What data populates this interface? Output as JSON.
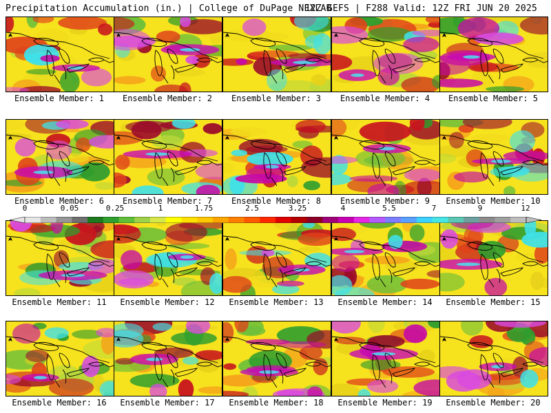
{
  "header": {
    "title": "Precipitation Accumulation (in.) | College of DuPage NEXLAB",
    "run_info": "12Z GEFS | F288 Valid: 12Z FRI JUN 20 2025"
  },
  "panels": [
    {
      "label": "Ensemble Member: 1"
    },
    {
      "label": "Ensemble Member: 2"
    },
    {
      "label": "Ensemble Member: 3"
    },
    {
      "label": "Ensemble Member: 4"
    },
    {
      "label": "Ensemble Member: 5"
    },
    {
      "label": "Ensemble Member: 6"
    },
    {
      "label": "Ensemble Member: 7"
    },
    {
      "label": "Ensemble Member: 8"
    },
    {
      "label": "Ensemble Member: 9"
    },
    {
      "label": "Ensemble Member: 10"
    },
    {
      "label": "Ensemble Member: 11"
    },
    {
      "label": "Ensemble Member: 12"
    },
    {
      "label": "Ensemble Member: 13"
    },
    {
      "label": "Ensemble Member: 14"
    },
    {
      "label": "Ensemble Member: 15"
    },
    {
      "label": "Ensemble Member: 16"
    },
    {
      "label": "Ensemble Member: 17"
    },
    {
      "label": "Ensemble Member: 18"
    },
    {
      "label": "Ensemble Member: 19"
    },
    {
      "label": "Ensemble Member: 20"
    }
  ],
  "colorbar": {
    "tick_labels": [
      "0",
      "0.05",
      "0.25",
      "1",
      "1.75",
      "2.5",
      "3.25",
      "4",
      "5.5",
      "7",
      "9",
      "12"
    ],
    "colors": [
      "#e6e6e6",
      "#bdbdbd",
      "#969696",
      "#707070",
      "#1e7a1e",
      "#2fa02f",
      "#5fbf3a",
      "#9ed24a",
      "#d6e84a",
      "#ffff00",
      "#ffe000",
      "#ffc800",
      "#ffa500",
      "#ff7f00",
      "#ff5a00",
      "#ff2800",
      "#e00000",
      "#b40000",
      "#8c0028",
      "#a0007a",
      "#c800b4",
      "#e628e6",
      "#b45aff",
      "#7d7dff",
      "#5aa0ff",
      "#3cd2ff",
      "#46e6e6",
      "#5ac8b4",
      "#6ea0a0",
      "#8c8c8c",
      "#a0a0a0",
      "#bebebe"
    ]
  }
}
